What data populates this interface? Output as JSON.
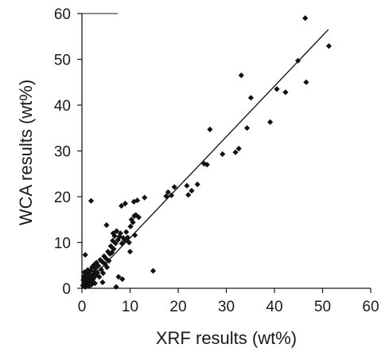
{
  "chart_data": {
    "type": "scatter",
    "title": "",
    "xlabel": "XRF results (wt%)",
    "ylabel": "WCA results (wt%)",
    "xlim": [
      0,
      60
    ],
    "ylim": [
      0,
      60
    ],
    "xticks": [
      0,
      10,
      20,
      30,
      40,
      50,
      60
    ],
    "yticks": [
      0,
      10,
      20,
      30,
      40,
      50,
      60
    ],
    "grid": false,
    "legend": "none",
    "marker": "diamond",
    "point_color": "#111111",
    "trendline": {
      "x": [
        0,
        51.2
      ],
      "y": [
        0,
        56.5
      ]
    },
    "points": [
      [
        0.2,
        0.6
      ],
      [
        0.3,
        1.8
      ],
      [
        0.4,
        2.6
      ],
      [
        0.5,
        3.5
      ],
      [
        0.6,
        1.2
      ],
      [
        0.7,
        0.3
      ],
      [
        0.8,
        2.0
      ],
      [
        0.9,
        1.4
      ],
      [
        1.0,
        0.8
      ],
      [
        1.1,
        2.9
      ],
      [
        1.2,
        4.0
      ],
      [
        1.3,
        1.0
      ],
      [
        1.4,
        3.3
      ],
      [
        1.5,
        0.5
      ],
      [
        1.6,
        2.2
      ],
      [
        1.7,
        1.7
      ],
      [
        1.8,
        3.9
      ],
      [
        1.9,
        2.6
      ],
      [
        2.0,
        0.8
      ],
      [
        2.1,
        4.6
      ],
      [
        2.2,
        1.5
      ],
      [
        2.3,
        3.0
      ],
      [
        2.4,
        2.1
      ],
      [
        2.5,
        5.1
      ],
      [
        2.6,
        3.6
      ],
      [
        2.7,
        1.1
      ],
      [
        2.8,
        4.3
      ],
      [
        2.9,
        2.8
      ],
      [
        3.0,
        5.6
      ],
      [
        3.2,
        3.4
      ],
      [
        3.4,
        4.9
      ],
      [
        3.6,
        2.5
      ],
      [
        3.8,
        6.2
      ],
      [
        4.0,
        4.1
      ],
      [
        4.2,
        5.8
      ],
      [
        4.4,
        3.3
      ],
      [
        4.6,
        7.0
      ],
      [
        4.8,
        5.3
      ],
      [
        5.0,
        6.5
      ],
      [
        5.2,
        4.6
      ],
      [
        5.4,
        8.0
      ],
      [
        5.6,
        6.0
      ],
      [
        5.8,
        7.5
      ],
      [
        6.0,
        9.2
      ],
      [
        6.2,
        7.8
      ],
      [
        6.4,
        10.4
      ],
      [
        6.6,
        8.6
      ],
      [
        6.8,
        11.4
      ],
      [
        7.0,
        9.8
      ],
      [
        7.2,
        12.5
      ],
      [
        7.5,
        10.6
      ],
      [
        7.8,
        11.3
      ],
      [
        8.0,
        12.0
      ],
      [
        8.3,
        9.8
      ],
      [
        8.6,
        11.0
      ],
      [
        8.9,
        10.5
      ],
      [
        9.2,
        12.3
      ],
      [
        9.5,
        11.1
      ],
      [
        9.8,
        10.0
      ],
      [
        10.1,
        13.5
      ],
      [
        10.3,
        15.0
      ],
      [
        10.6,
        14.4
      ],
      [
        10.9,
        15.8
      ],
      [
        11.2,
        16.0
      ],
      [
        11.5,
        19.2
      ],
      [
        11.8,
        15.5
      ],
      [
        0.7,
        7.3
      ],
      [
        1.9,
        19.1
      ],
      [
        4.3,
        1.3
      ],
      [
        5.1,
        13.8
      ],
      [
        6.5,
        12.0
      ],
      [
        7.1,
        0.3
      ],
      [
        7.6,
        2.5
      ],
      [
        8.4,
        2.0
      ],
      [
        8.2,
        18.0
      ],
      [
        9.0,
        18.5
      ],
      [
        10.0,
        8.0
      ],
      [
        10.8,
        18.9
      ],
      [
        11.0,
        11.6
      ],
      [
        13.0,
        19.8
      ],
      [
        14.8,
        3.8
      ],
      [
        17.5,
        20.1
      ],
      [
        17.9,
        21.0
      ],
      [
        18.6,
        20.3
      ],
      [
        19.2,
        22.1
      ],
      [
        21.8,
        22.4
      ],
      [
        22.1,
        20.4
      ],
      [
        22.8,
        21.3
      ],
      [
        24.0,
        22.7
      ],
      [
        25.4,
        27.2
      ],
      [
        26.0,
        27.0
      ],
      [
        26.6,
        34.7
      ],
      [
        29.2,
        29.3
      ],
      [
        31.9,
        29.7
      ],
      [
        32.6,
        30.5
      ],
      [
        33.1,
        46.5
      ],
      [
        34.3,
        35.0
      ],
      [
        35.1,
        41.6
      ],
      [
        39.1,
        36.3
      ],
      [
        40.5,
        43.5
      ],
      [
        42.3,
        42.8
      ],
      [
        44.9,
        49.7
      ],
      [
        46.4,
        59.0
      ],
      [
        46.6,
        45.0
      ],
      [
        51.3,
        52.9
      ]
    ]
  }
}
